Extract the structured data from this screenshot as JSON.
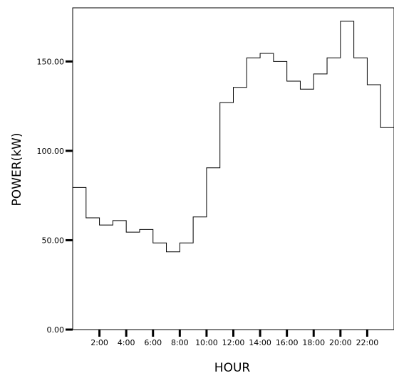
{
  "chart_data": {
    "type": "line",
    "style": "step",
    "title": "",
    "xlabel": "HOUR",
    "ylabel": "POWER(kW)",
    "xlim": [
      0,
      24
    ],
    "ylim": [
      0,
      180
    ],
    "grid": false,
    "x_ticks": [
      {
        "value": 2,
        "label": "2:00"
      },
      {
        "value": 4,
        "label": "4:00"
      },
      {
        "value": 6,
        "label": "6:00"
      },
      {
        "value": 8,
        "label": "8:00"
      },
      {
        "value": 10,
        "label": "10:00"
      },
      {
        "value": 12,
        "label": "12:00"
      },
      {
        "value": 14,
        "label": "14:00"
      },
      {
        "value": 16,
        "label": "16:00"
      },
      {
        "value": 18,
        "label": "18:00"
      },
      {
        "value": 20,
        "label": "20:00"
      },
      {
        "value": 22,
        "label": "22:00"
      }
    ],
    "y_ticks": [
      {
        "value": 0,
        "label": "0.00"
      },
      {
        "value": 50,
        "label": "50.00"
      },
      {
        "value": 100,
        "label": "100.00"
      },
      {
        "value": 150,
        "label": "150.00"
      }
    ],
    "series": [
      {
        "x": [
          0,
          1,
          2,
          3,
          4,
          5,
          6,
          7,
          8,
          9,
          10,
          11,
          12,
          13,
          14,
          15,
          16,
          17,
          18,
          19,
          20,
          21,
          22,
          23
        ],
        "values": [
          79.5,
          62.5,
          58.5,
          61,
          54.5,
          56,
          48.5,
          43.5,
          48.5,
          63,
          90.5,
          127,
          135.5,
          152,
          154.5,
          150,
          139,
          134.5,
          143,
          152,
          172.5,
          152,
          137,
          113
        ]
      }
    ]
  }
}
